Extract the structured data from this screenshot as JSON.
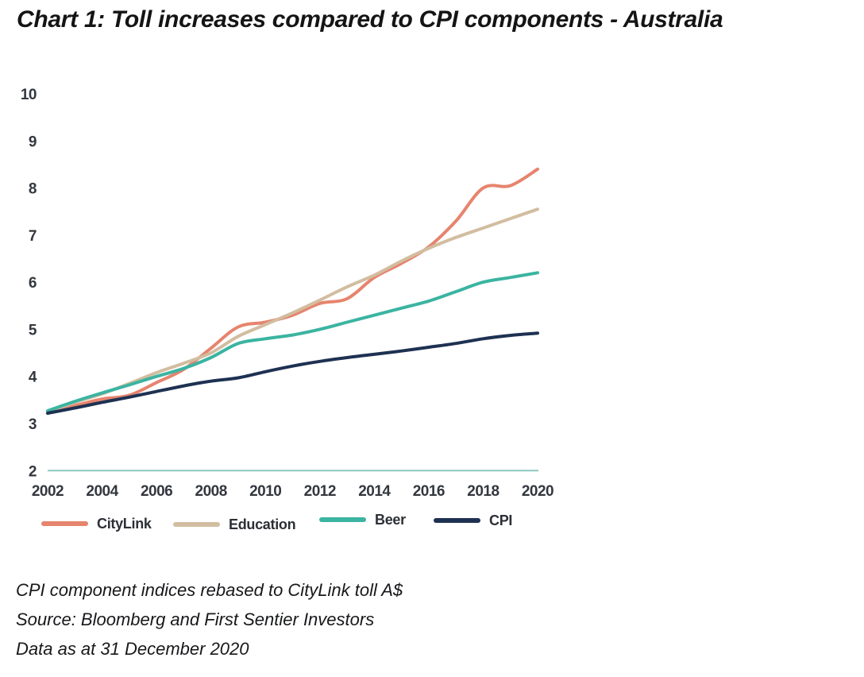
{
  "header": {
    "title": "Chart 1: Toll increases compared to CPI components  -  Australia"
  },
  "chart_data": {
    "type": "line",
    "title": "Chart 1: Toll increases compared to CPI components  -  Australia",
    "x": [
      2002,
      2003,
      2004,
      2005,
      2006,
      2007,
      2008,
      2009,
      2010,
      2011,
      2012,
      2013,
      2014,
      2015,
      2016,
      2017,
      2018,
      2019,
      2020
    ],
    "series": [
      {
        "name": "CityLink",
        "color": "#E6846E",
        "values": [
          3.25,
          3.38,
          3.52,
          3.6,
          3.87,
          4.15,
          4.6,
          5.05,
          5.15,
          5.3,
          5.55,
          5.65,
          6.1,
          6.4,
          6.75,
          7.3,
          8.0,
          8.05,
          8.4
        ]
      },
      {
        "name": "Education",
        "color": "#D2BDA0",
        "values": [
          3.25,
          3.45,
          3.63,
          3.85,
          4.08,
          4.28,
          4.5,
          4.85,
          5.1,
          5.35,
          5.62,
          5.9,
          6.15,
          6.45,
          6.72,
          6.95,
          7.15,
          7.35,
          7.55
        ]
      },
      {
        "name": "Beer",
        "color": "#3BB4A1",
        "values": [
          3.27,
          3.47,
          3.65,
          3.82,
          4.0,
          4.17,
          4.4,
          4.7,
          4.8,
          4.88,
          5.0,
          5.15,
          5.3,
          5.45,
          5.6,
          5.8,
          6.0,
          6.1,
          6.2
        ]
      },
      {
        "name": "CPI",
        "color": "#1E3152",
        "values": [
          3.22,
          3.33,
          3.45,
          3.56,
          3.68,
          3.8,
          3.9,
          3.97,
          4.1,
          4.22,
          4.32,
          4.4,
          4.47,
          4.54,
          4.62,
          4.7,
          4.8,
          4.87,
          4.92
        ]
      }
    ],
    "xlim": [
      2002,
      2020
    ],
    "ylim": [
      2,
      10
    ],
    "x_ticks": [
      2002,
      2004,
      2006,
      2008,
      2010,
      2012,
      2014,
      2016,
      2018,
      2020
    ],
    "y_ticks": [
      10,
      9,
      8,
      7,
      6,
      5,
      4,
      3,
      2
    ],
    "grid": false,
    "baseline_value": 2,
    "baseline_color": "#8FC8C0",
    "legend_position": "bottom",
    "legend_order": [
      "CityLink",
      "Education",
      "Beer",
      "CPI"
    ]
  },
  "footer": {
    "lines": [
      "CPI component indices rebased to CityLink toll A$",
      "Source: Bloomberg and First Sentier Investors",
      "Data as at 31 December 2020"
    ]
  }
}
